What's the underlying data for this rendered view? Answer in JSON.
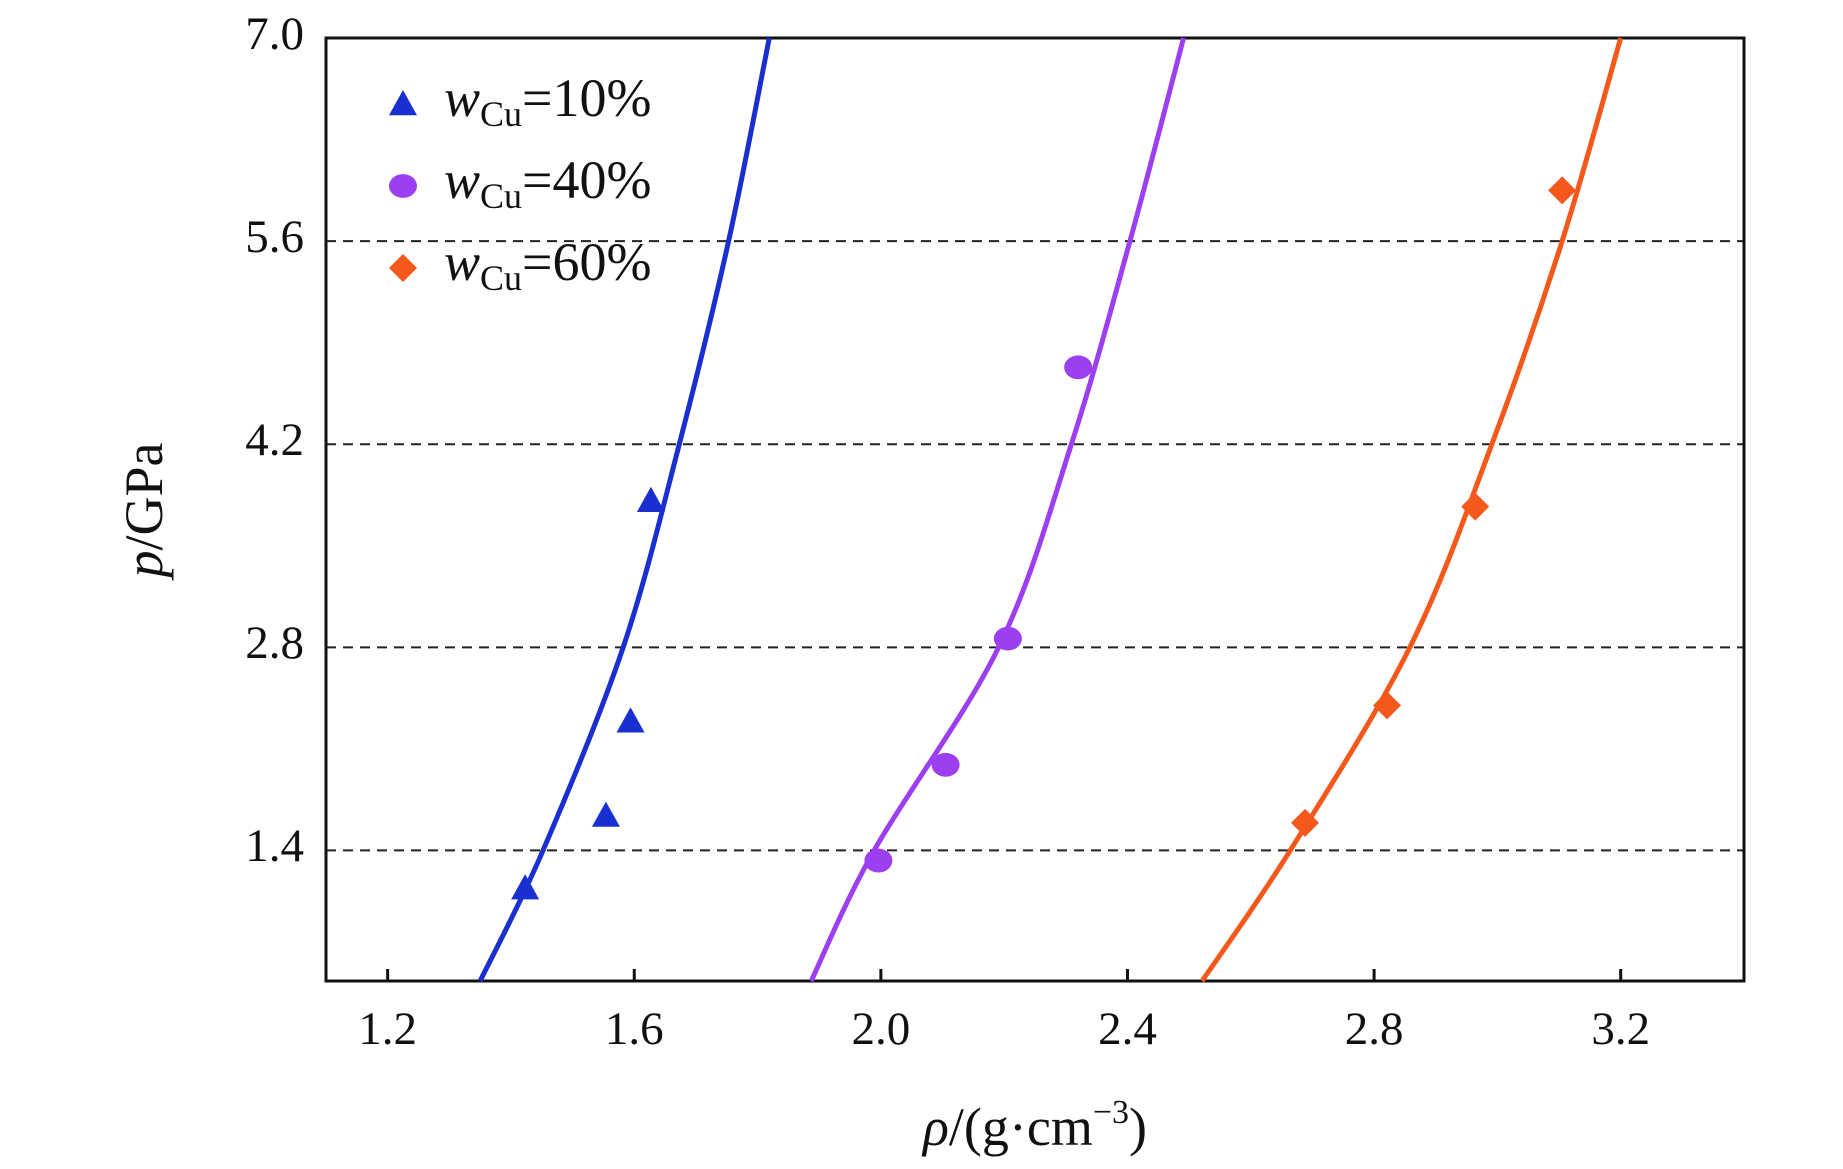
{
  "chart_data": {
    "type": "scatter",
    "x_label": "ρ/(g·cm−3)",
    "y_label": "p/GPa",
    "xlim": [
      1.1,
      3.4
    ],
    "ylim": [
      0.5,
      7.0
    ],
    "xticks": [
      1.2,
      1.6,
      {
        "value": 2,
        "label": "2.0"
      },
      2.4,
      2.8,
      3.2
    ],
    "yticks": [
      1.4,
      2.8,
      4.2,
      5.6,
      {
        "value": 7,
        "label": "7.0"
      }
    ],
    "grid": true,
    "legend": "upper left",
    "series": [
      {
        "name": "wCu=10%",
        "color": "#1a2fd0",
        "marker": "triangle",
        "x": [
          1.423,
          1.554,
          1.594,
          1.627
        ],
        "values": [
          1.14,
          1.64,
          2.29,
          3.81
        ]
      },
      {
        "name": "wCu=40%",
        "color": "#9b3ff0",
        "marker": "circle",
        "x": [
          1.996,
          2.105,
          2.206,
          2.32
        ],
        "values": [
          1.33,
          1.99,
          2.86,
          4.73
        ]
      },
      {
        "name": "wCu=60%",
        "color": "#f4581a",
        "marker": "diamond",
        "x": [
          2.688,
          2.821,
          2.964,
          3.105
        ],
        "values": [
          1.59,
          2.4,
          3.77,
          5.95
        ]
      }
    ],
    "fits": [
      {
        "color": "#1a2fd0",
        "x": [
          1.35,
          1.452,
          1.582,
          1.673,
          1.753,
          1.819
        ],
        "values": [
          0.5,
          1.4,
          2.8,
          4.2,
          5.6,
          7.0
        ]
      },
      {
        "color": "#9b3ff0",
        "x": [
          1.887,
          1.989,
          2.191,
          2.309,
          2.404,
          2.491
        ],
        "values": [
          0.5,
          1.4,
          2.8,
          4.2,
          5.6,
          7.0
        ]
      },
      {
        "color": "#f4581a",
        "x": [
          2.521,
          2.664,
          2.858,
          2.991,
          3.105,
          3.2
        ],
        "values": [
          0.5,
          1.4,
          2.8,
          4.2,
          5.6,
          7.0
        ]
      }
    ]
  }
}
